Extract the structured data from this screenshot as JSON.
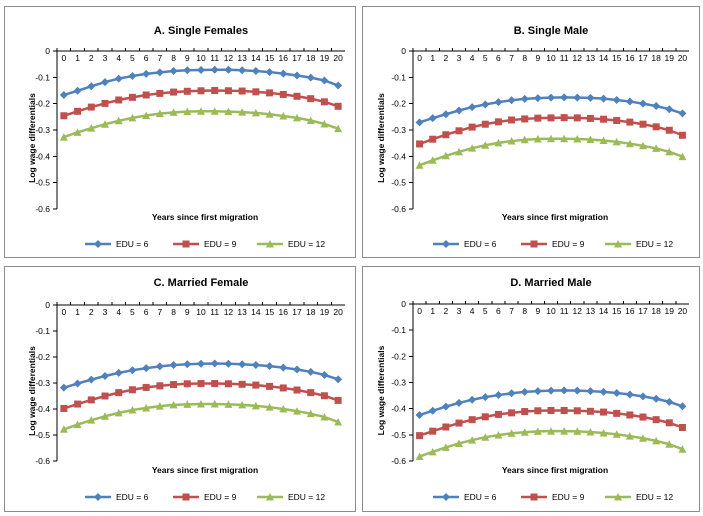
{
  "chart_data": [
    {
      "type": "line",
      "title": "A. Single Females",
      "xlabel": "Years since first migration",
      "ylabel": "Log wage differentials",
      "x": [
        0,
        1,
        2,
        3,
        4,
        5,
        6,
        7,
        8,
        9,
        10,
        11,
        12,
        13,
        14,
        15,
        16,
        17,
        18,
        19,
        20
      ],
      "ylim": [
        -0.6,
        0
      ],
      "yticks": [
        "0",
        "-0.1",
        "-0.2",
        "-0.3",
        "-0.4",
        "-0.5",
        "-0.6"
      ],
      "legend_position": "bottom",
      "series": [
        {
          "name": "EDU = 6",
          "color": "#4f81bd",
          "marker": "diamond-icon",
          "values": [
            -0.167,
            -0.151,
            -0.134,
            -0.118,
            -0.105,
            -0.095,
            -0.087,
            -0.081,
            -0.076,
            -0.073,
            -0.072,
            -0.071,
            -0.071,
            -0.073,
            -0.076,
            -0.08,
            -0.086,
            -0.093,
            -0.101,
            -0.112,
            -0.131
          ]
        },
        {
          "name": "EDU = 9",
          "color": "#c0504d",
          "marker": "square-icon",
          "values": [
            -0.246,
            -0.229,
            -0.213,
            -0.199,
            -0.186,
            -0.176,
            -0.167,
            -0.161,
            -0.156,
            -0.153,
            -0.151,
            -0.15,
            -0.151,
            -0.152,
            -0.155,
            -0.159,
            -0.165,
            -0.172,
            -0.181,
            -0.193,
            -0.21
          ]
        },
        {
          "name": "EDU = 12",
          "color": "#9bbb59",
          "marker": "triangle-icon",
          "values": [
            -0.327,
            -0.309,
            -0.293,
            -0.278,
            -0.265,
            -0.254,
            -0.245,
            -0.238,
            -0.233,
            -0.23,
            -0.229,
            -0.229,
            -0.23,
            -0.232,
            -0.235,
            -0.24,
            -0.247,
            -0.254,
            -0.264,
            -0.277,
            -0.295
          ]
        }
      ]
    },
    {
      "type": "line",
      "title": "B. Single Male",
      "xlabel": "Years since first migration",
      "ylabel": "Log wage differentials",
      "x": [
        0,
        1,
        2,
        3,
        4,
        5,
        6,
        7,
        8,
        9,
        10,
        11,
        12,
        13,
        14,
        15,
        16,
        17,
        18,
        19,
        20
      ],
      "ylim": [
        -0.6,
        0
      ],
      "yticks": [
        "0",
        "-0.1",
        "-0.2",
        "-0.3",
        "-0.4",
        "-0.5",
        "-0.6"
      ],
      "legend_position": "bottom",
      "series": [
        {
          "name": "EDU = 6",
          "color": "#4f81bd",
          "marker": "diamond-icon",
          "values": [
            -0.271,
            -0.255,
            -0.24,
            -0.226,
            -0.213,
            -0.203,
            -0.194,
            -0.187,
            -0.182,
            -0.179,
            -0.177,
            -0.176,
            -0.177,
            -0.178,
            -0.181,
            -0.186,
            -0.192,
            -0.2,
            -0.209,
            -0.221,
            -0.237
          ]
        },
        {
          "name": "EDU = 9",
          "color": "#c0504d",
          "marker": "square-icon",
          "values": [
            -0.353,
            -0.335,
            -0.318,
            -0.303,
            -0.289,
            -0.278,
            -0.269,
            -0.262,
            -0.258,
            -0.255,
            -0.254,
            -0.253,
            -0.254,
            -0.256,
            -0.259,
            -0.264,
            -0.27,
            -0.278,
            -0.288,
            -0.301,
            -0.32
          ]
        },
        {
          "name": "EDU = 12",
          "color": "#9bbb59",
          "marker": "triangle-icon",
          "values": [
            -0.434,
            -0.415,
            -0.398,
            -0.383,
            -0.369,
            -0.358,
            -0.349,
            -0.342,
            -0.337,
            -0.334,
            -0.333,
            -0.333,
            -0.334,
            -0.336,
            -0.34,
            -0.345,
            -0.352,
            -0.36,
            -0.37,
            -0.383,
            -0.401
          ]
        }
      ]
    },
    {
      "type": "line",
      "title": "C. Married Female",
      "xlabel": "Years since first migration",
      "ylabel": "Log wage differentials",
      "x": [
        0,
        1,
        2,
        3,
        4,
        5,
        6,
        7,
        8,
        9,
        10,
        11,
        12,
        13,
        14,
        15,
        16,
        17,
        18,
        19,
        20
      ],
      "ylim": [
        -0.6,
        0
      ],
      "yticks": [
        "0",
        "-0.1",
        "-0.2",
        "-0.3",
        "-0.4",
        "-0.5",
        "-0.6"
      ],
      "legend_position": "bottom",
      "series": [
        {
          "name": "EDU = 6",
          "color": "#4f81bd",
          "marker": "diamond-icon",
          "values": [
            -0.318,
            -0.302,
            -0.287,
            -0.273,
            -0.261,
            -0.251,
            -0.243,
            -0.236,
            -0.231,
            -0.228,
            -0.226,
            -0.225,
            -0.226,
            -0.228,
            -0.231,
            -0.235,
            -0.241,
            -0.248,
            -0.257,
            -0.269,
            -0.286
          ]
        },
        {
          "name": "EDU = 9",
          "color": "#c0504d",
          "marker": "square-icon",
          "values": [
            -0.398,
            -0.381,
            -0.365,
            -0.35,
            -0.337,
            -0.326,
            -0.317,
            -0.311,
            -0.306,
            -0.303,
            -0.302,
            -0.302,
            -0.303,
            -0.305,
            -0.308,
            -0.313,
            -0.319,
            -0.327,
            -0.337,
            -0.349,
            -0.367
          ]
        },
        {
          "name": "EDU = 12",
          "color": "#9bbb59",
          "marker": "triangle-icon",
          "values": [
            -0.478,
            -0.46,
            -0.443,
            -0.428,
            -0.415,
            -0.404,
            -0.396,
            -0.389,
            -0.384,
            -0.382,
            -0.381,
            -0.381,
            -0.382,
            -0.384,
            -0.388,
            -0.393,
            -0.4,
            -0.408,
            -0.418,
            -0.431,
            -0.45
          ]
        }
      ]
    },
    {
      "type": "line",
      "title": "D. Married Male",
      "xlabel": "Years since first migration",
      "ylabel": "Log wage differentials",
      "x": [
        0,
        1,
        2,
        3,
        4,
        5,
        6,
        7,
        8,
        9,
        10,
        11,
        12,
        13,
        14,
        15,
        16,
        17,
        18,
        19,
        20
      ],
      "ylim": [
        -0.6,
        0
      ],
      "yticks": [
        "0",
        "-0.1",
        "-0.2",
        "-0.3",
        "-0.4",
        "-0.5",
        "-0.6"
      ],
      "legend_position": "bottom",
      "series": [
        {
          "name": "EDU = 6",
          "color": "#4f81bd",
          "marker": "diamond-icon",
          "values": [
            -0.424,
            -0.408,
            -0.392,
            -0.378,
            -0.366,
            -0.356,
            -0.348,
            -0.341,
            -0.336,
            -0.333,
            -0.331,
            -0.33,
            -0.331,
            -0.333,
            -0.336,
            -0.34,
            -0.346,
            -0.353,
            -0.362,
            -0.374,
            -0.391
          ]
        },
        {
          "name": "EDU = 9",
          "color": "#c0504d",
          "marker": "square-icon",
          "values": [
            -0.503,
            -0.486,
            -0.47,
            -0.455,
            -0.442,
            -0.431,
            -0.422,
            -0.416,
            -0.411,
            -0.408,
            -0.407,
            -0.407,
            -0.408,
            -0.41,
            -0.413,
            -0.418,
            -0.424,
            -0.432,
            -0.442,
            -0.454,
            -0.472
          ]
        },
        {
          "name": "EDU = 12",
          "color": "#9bbb59",
          "marker": "triangle-icon",
          "values": [
            -0.583,
            -0.565,
            -0.548,
            -0.533,
            -0.52,
            -0.509,
            -0.501,
            -0.494,
            -0.49,
            -0.487,
            -0.486,
            -0.486,
            -0.487,
            -0.489,
            -0.493,
            -0.498,
            -0.505,
            -0.513,
            -0.523,
            -0.536,
            -0.555
          ]
        }
      ]
    }
  ]
}
